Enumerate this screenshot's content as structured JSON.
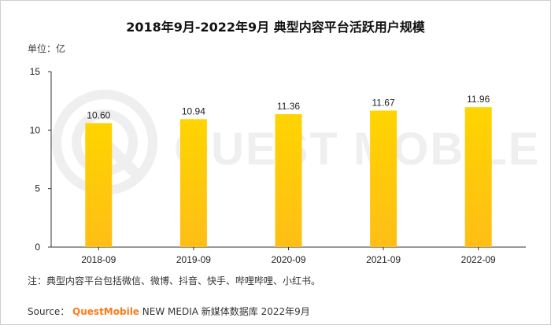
{
  "title": "2018年9月-2022年9月 典型内容平台活跃用户规模",
  "unit_label": "单位：亿",
  "note": "注：典型内容平台包括微信、微博、抖音、快手、哔哩哔哩、小红书。",
  "source": {
    "prefix": "Source：",
    "brand": "QuestMobile",
    "suffix": " NEW MEDIA 新媒体数据库 2022年9月"
  },
  "watermark_text": "QUEST MOBILE",
  "colors": {
    "bar_top": "#ffd400",
    "bar_bottom": "#ffbe16",
    "axis": "#333333",
    "text": "#222222",
    "source_brand": "#ff7a1a",
    "watermark": "#efefef"
  },
  "chart_data": {
    "type": "bar",
    "title": "2018年9月-2022年9月 典型内容平台活跃用户规模",
    "xlabel": "",
    "ylabel": "单位：亿",
    "categories": [
      "2018-09",
      "2019-09",
      "2020-09",
      "2021-09",
      "2022-09"
    ],
    "values": [
      10.6,
      10.94,
      11.36,
      11.67,
      11.96
    ],
    "data_labels": [
      "10.60",
      "10.94",
      "11.36",
      "11.67",
      "11.96"
    ],
    "ylim": [
      0,
      15
    ],
    "yticks": [
      0,
      5,
      10,
      15
    ],
    "grid": false,
    "legend": "none"
  }
}
